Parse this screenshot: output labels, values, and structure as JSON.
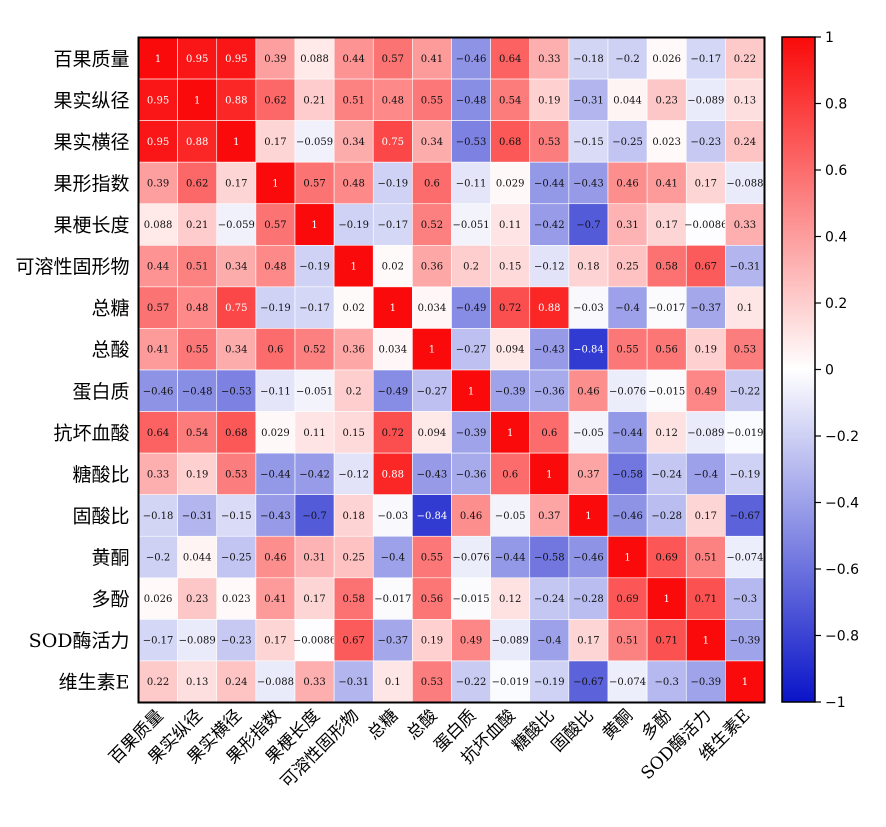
{
  "chart_data": {
    "type": "heatmap",
    "title": "",
    "xlabel": "",
    "ylabel": "",
    "labels": [
      "百果质量",
      "果实纵径",
      "果实横径",
      "果形指数",
      "果梗长度",
      "可溶性固形物",
      "总糖",
      "总酸",
      "蛋白质",
      "抗坏血酸",
      "糖酸比",
      "固酸比",
      "黄酮",
      "多酚",
      "SOD酶活力",
      "维生素E"
    ],
    "values": [
      [
        1,
        0.95,
        0.95,
        0.39,
        0.088,
        0.44,
        0.57,
        0.41,
        -0.46,
        0.64,
        0.33,
        -0.18,
        -0.2,
        0.026,
        -0.17,
        0.22
      ],
      [
        0.95,
        1,
        0.88,
        0.62,
        0.21,
        0.51,
        0.48,
        0.55,
        -0.48,
        0.54,
        0.19,
        -0.31,
        0.044,
        0.23,
        -0.089,
        0.13
      ],
      [
        0.95,
        0.88,
        1,
        0.17,
        -0.059,
        0.34,
        0.75,
        0.34,
        -0.53,
        0.68,
        0.53,
        -0.15,
        -0.25,
        0.023,
        -0.23,
        0.24
      ],
      [
        0.39,
        0.62,
        0.17,
        1,
        0.57,
        0.48,
        -0.19,
        0.6,
        -0.11,
        0.029,
        -0.44,
        -0.43,
        0.46,
        0.41,
        0.17,
        -0.088
      ],
      [
        0.088,
        0.21,
        -0.059,
        0.57,
        1,
        -0.19,
        -0.17,
        0.52,
        -0.051,
        0.11,
        -0.42,
        -0.7,
        0.31,
        0.17,
        -0.0086,
        0.33
      ],
      [
        0.44,
        0.51,
        0.34,
        0.48,
        -0.19,
        1,
        0.02,
        0.36,
        0.2,
        0.15,
        -0.12,
        0.18,
        0.25,
        0.58,
        0.67,
        -0.31
      ],
      [
        0.57,
        0.48,
        0.75,
        -0.19,
        -0.17,
        0.02,
        1,
        0.034,
        -0.49,
        0.72,
        0.88,
        -0.03,
        -0.4,
        -0.017,
        -0.37,
        0.1
      ],
      [
        0.41,
        0.55,
        0.34,
        0.6,
        0.52,
        0.36,
        0.034,
        1,
        -0.27,
        0.094,
        -0.43,
        -0.84,
        0.55,
        0.56,
        0.19,
        0.53
      ],
      [
        -0.46,
        -0.48,
        -0.53,
        -0.11,
        -0.051,
        0.2,
        -0.49,
        -0.27,
        1,
        -0.39,
        -0.36,
        0.46,
        -0.076,
        -0.015,
        0.49,
        -0.22
      ],
      [
        0.64,
        0.54,
        0.68,
        0.029,
        0.11,
        0.15,
        0.72,
        0.094,
        -0.39,
        1,
        0.6,
        -0.05,
        -0.44,
        0.12,
        -0.089,
        -0.019
      ],
      [
        0.33,
        0.19,
        0.53,
        -0.44,
        -0.42,
        -0.12,
        0.88,
        -0.43,
        -0.36,
        0.6,
        1,
        0.37,
        -0.58,
        -0.24,
        -0.4,
        -0.19
      ],
      [
        -0.18,
        -0.31,
        -0.15,
        -0.43,
        -0.7,
        0.18,
        -0.03,
        -0.84,
        0.46,
        -0.05,
        0.37,
        1,
        -0.46,
        -0.28,
        0.17,
        -0.67
      ],
      [
        -0.2,
        0.044,
        -0.25,
        0.46,
        0.31,
        0.25,
        -0.4,
        0.55,
        -0.076,
        -0.44,
        -0.58,
        -0.46,
        1,
        0.69,
        0.51,
        -0.074
      ],
      [
        0.026,
        0.23,
        0.023,
        0.41,
        0.17,
        0.58,
        -0.017,
        0.56,
        -0.015,
        0.12,
        -0.24,
        -0.28,
        0.69,
        1,
        0.71,
        -0.3
      ],
      [
        -0.17,
        -0.089,
        -0.23,
        0.17,
        -0.0086,
        0.67,
        -0.37,
        0.19,
        0.49,
        -0.089,
        -0.4,
        0.17,
        0.51,
        0.71,
        1,
        -0.39
      ],
      [
        0.22,
        0.13,
        0.24,
        -0.088,
        0.33,
        -0.31,
        0.1,
        0.53,
        -0.22,
        -0.019,
        -0.19,
        -0.67,
        -0.074,
        -0.3,
        -0.39,
        1
      ]
    ],
    "colorbar": {
      "range": [
        -1,
        1
      ],
      "ticks": [
        1,
        0.8,
        0.6,
        0.4,
        0.2,
        0,
        -0.2,
        -0.4,
        -0.6,
        -0.8,
        -1
      ],
      "tick_labels": [
        "1",
        "0.8",
        "0.6",
        "0.4",
        "0.2",
        "0",
        "−0.2",
        "−0.4",
        "−0.6",
        "−0.8",
        "−1"
      ],
      "placement": "right"
    },
    "colors": {
      "negative": "#0a14c8",
      "neutral": "#ffffff",
      "positive": "#fa0a0a"
    },
    "cell_labels": "on",
    "grid": "on"
  }
}
